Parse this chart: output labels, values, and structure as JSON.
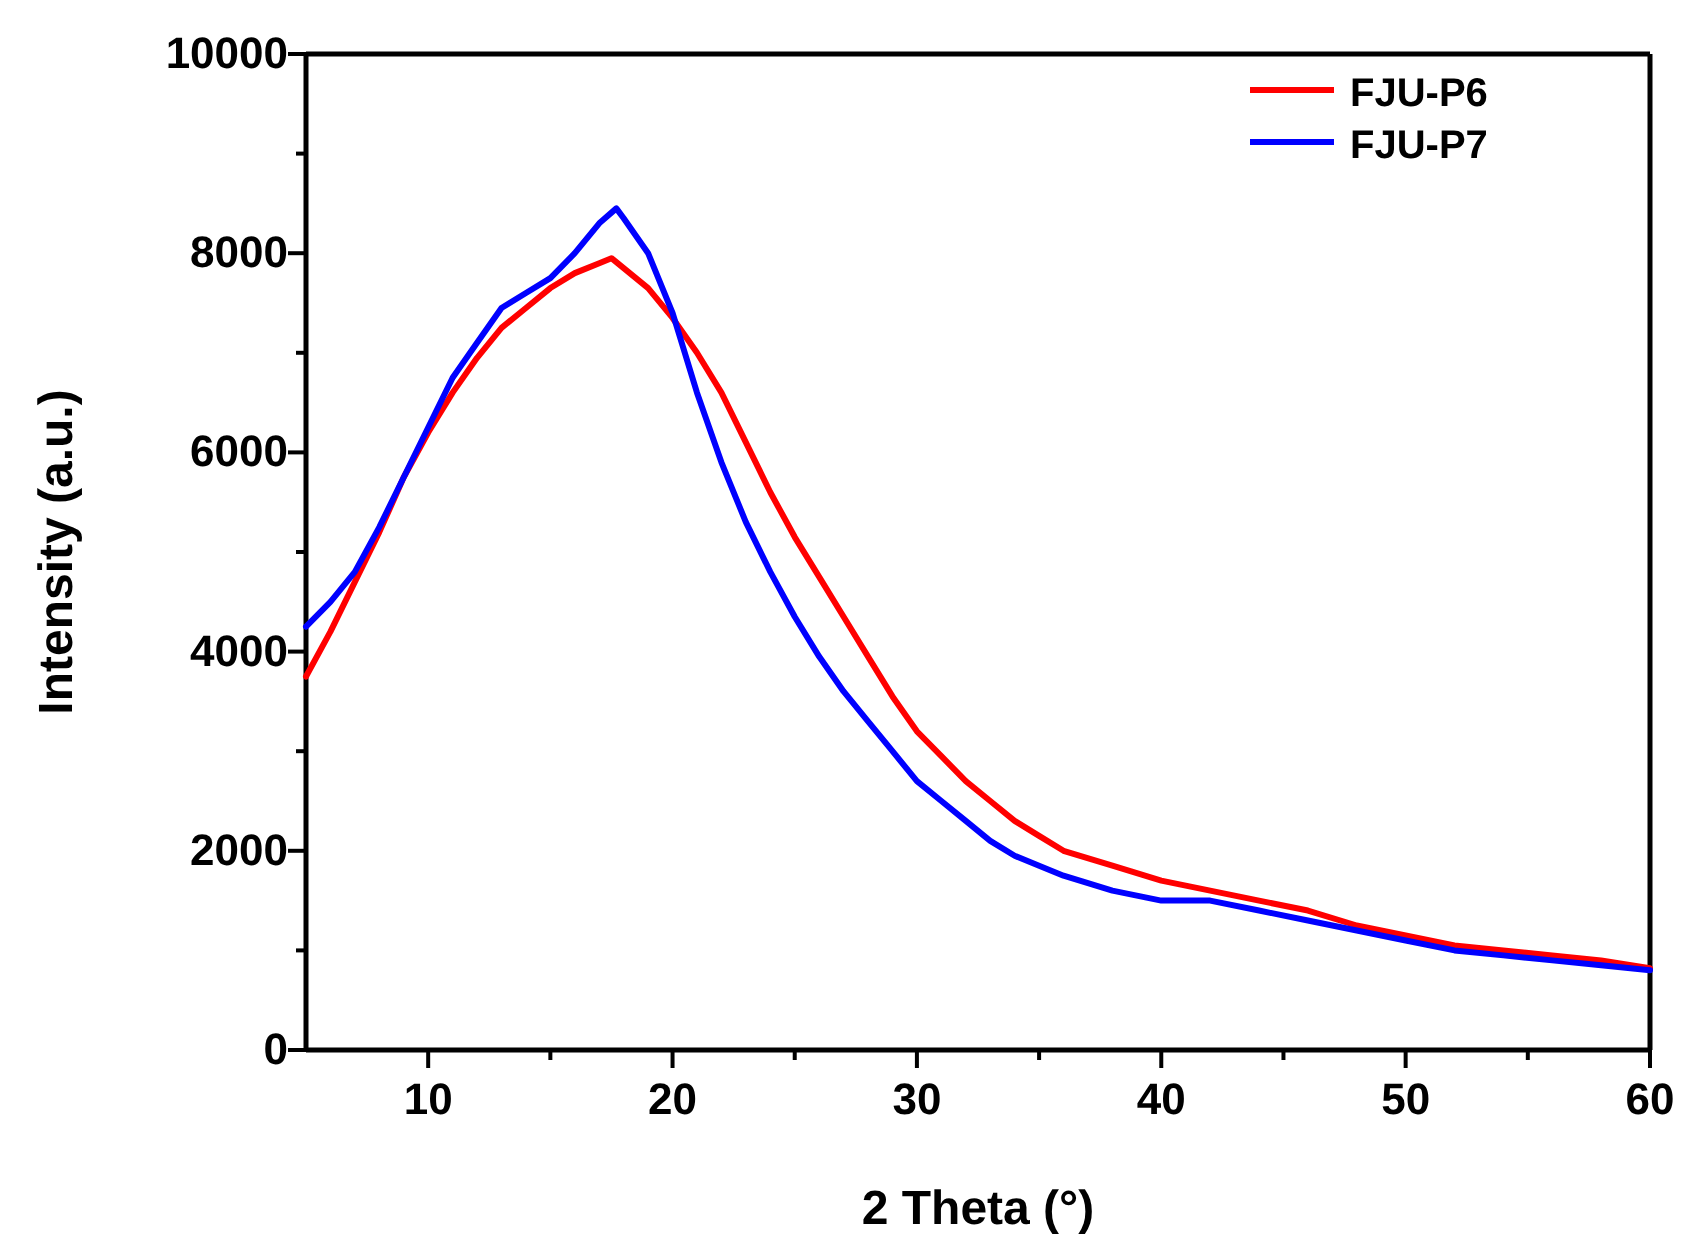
{
  "chart_data": {
    "type": "line",
    "xlabel": "2 Theta (°)",
    "ylabel": "Intensity (a.u.)",
    "xlim": [
      5,
      60
    ],
    "ylim": [
      0,
      10000
    ],
    "xticks": [
      10,
      {
        "value": 15,
        "label": null
      },
      20,
      {
        "value": 25,
        "label": null
      },
      30,
      {
        "value": 35,
        "label": null
      },
      40,
      {
        "value": 45,
        "label": null
      },
      50,
      {
        "value": 55,
        "label": null
      },
      60
    ],
    "yticks": [
      0,
      {
        "value": 1000,
        "label": null
      },
      2000,
      {
        "value": 3000,
        "label": null
      },
      4000,
      {
        "value": 5000,
        "label": null
      },
      6000,
      {
        "value": 7000,
        "label": null
      },
      8000,
      {
        "value": 9000,
        "label": null
      },
      10000
    ],
    "grid": false,
    "legend": "top right",
    "marker": "none",
    "line_style": "solid",
    "series": [
      {
        "name": "FJU-P6",
        "color": "#ff0000",
        "x": [
          5,
          6,
          7,
          8,
          9,
          10,
          11,
          12,
          13,
          14,
          15,
          16,
          17,
          17.5,
          18,
          19,
          20,
          21,
          22,
          23,
          24,
          25,
          26,
          27,
          28,
          29,
          30,
          31,
          32,
          33,
          34,
          35,
          36,
          38,
          40,
          42,
          44,
          46,
          48,
          50,
          52,
          54,
          56,
          58,
          60
        ],
        "values": [
          3750,
          4200,
          4700,
          5200,
          5750,
          6200,
          6600,
          6950,
          7250,
          7450,
          7650,
          7800,
          7900,
          7950,
          7850,
          7650,
          7350,
          7000,
          6600,
          6100,
          5600,
          5150,
          4750,
          4350,
          3950,
          3550,
          3200,
          2950,
          2700,
          2500,
          2300,
          2150,
          2000,
          1850,
          1700,
          1600,
          1500,
          1400,
          1250,
          1150,
          1050,
          1000,
          950,
          900,
          820
        ]
      },
      {
        "name": "FJU-P7",
        "color": "#0000ff",
        "x": [
          5,
          6,
          7,
          8,
          9,
          10,
          11,
          12,
          13,
          14,
          15,
          16,
          17,
          17.7,
          18,
          19,
          20,
          21,
          22,
          23,
          24,
          25,
          26,
          27,
          28,
          29,
          30,
          31,
          32,
          33,
          34,
          35,
          36,
          38,
          40,
          42,
          44,
          46,
          48,
          50,
          52,
          54,
          56,
          58,
          60
        ],
        "values": [
          4250,
          4500,
          4800,
          5250,
          5750,
          6250,
          6750,
          7100,
          7450,
          7600,
          7750,
          8000,
          8300,
          8450,
          8350,
          8000,
          7400,
          6600,
          5900,
          5300,
          4800,
          4350,
          3950,
          3600,
          3300,
          3000,
          2700,
          2500,
          2300,
          2100,
          1950,
          1850,
          1750,
          1600,
          1500,
          1500,
          1400,
          1300,
          1200,
          1100,
          1000,
          950,
          900,
          850,
          800
        ]
      }
    ]
  }
}
